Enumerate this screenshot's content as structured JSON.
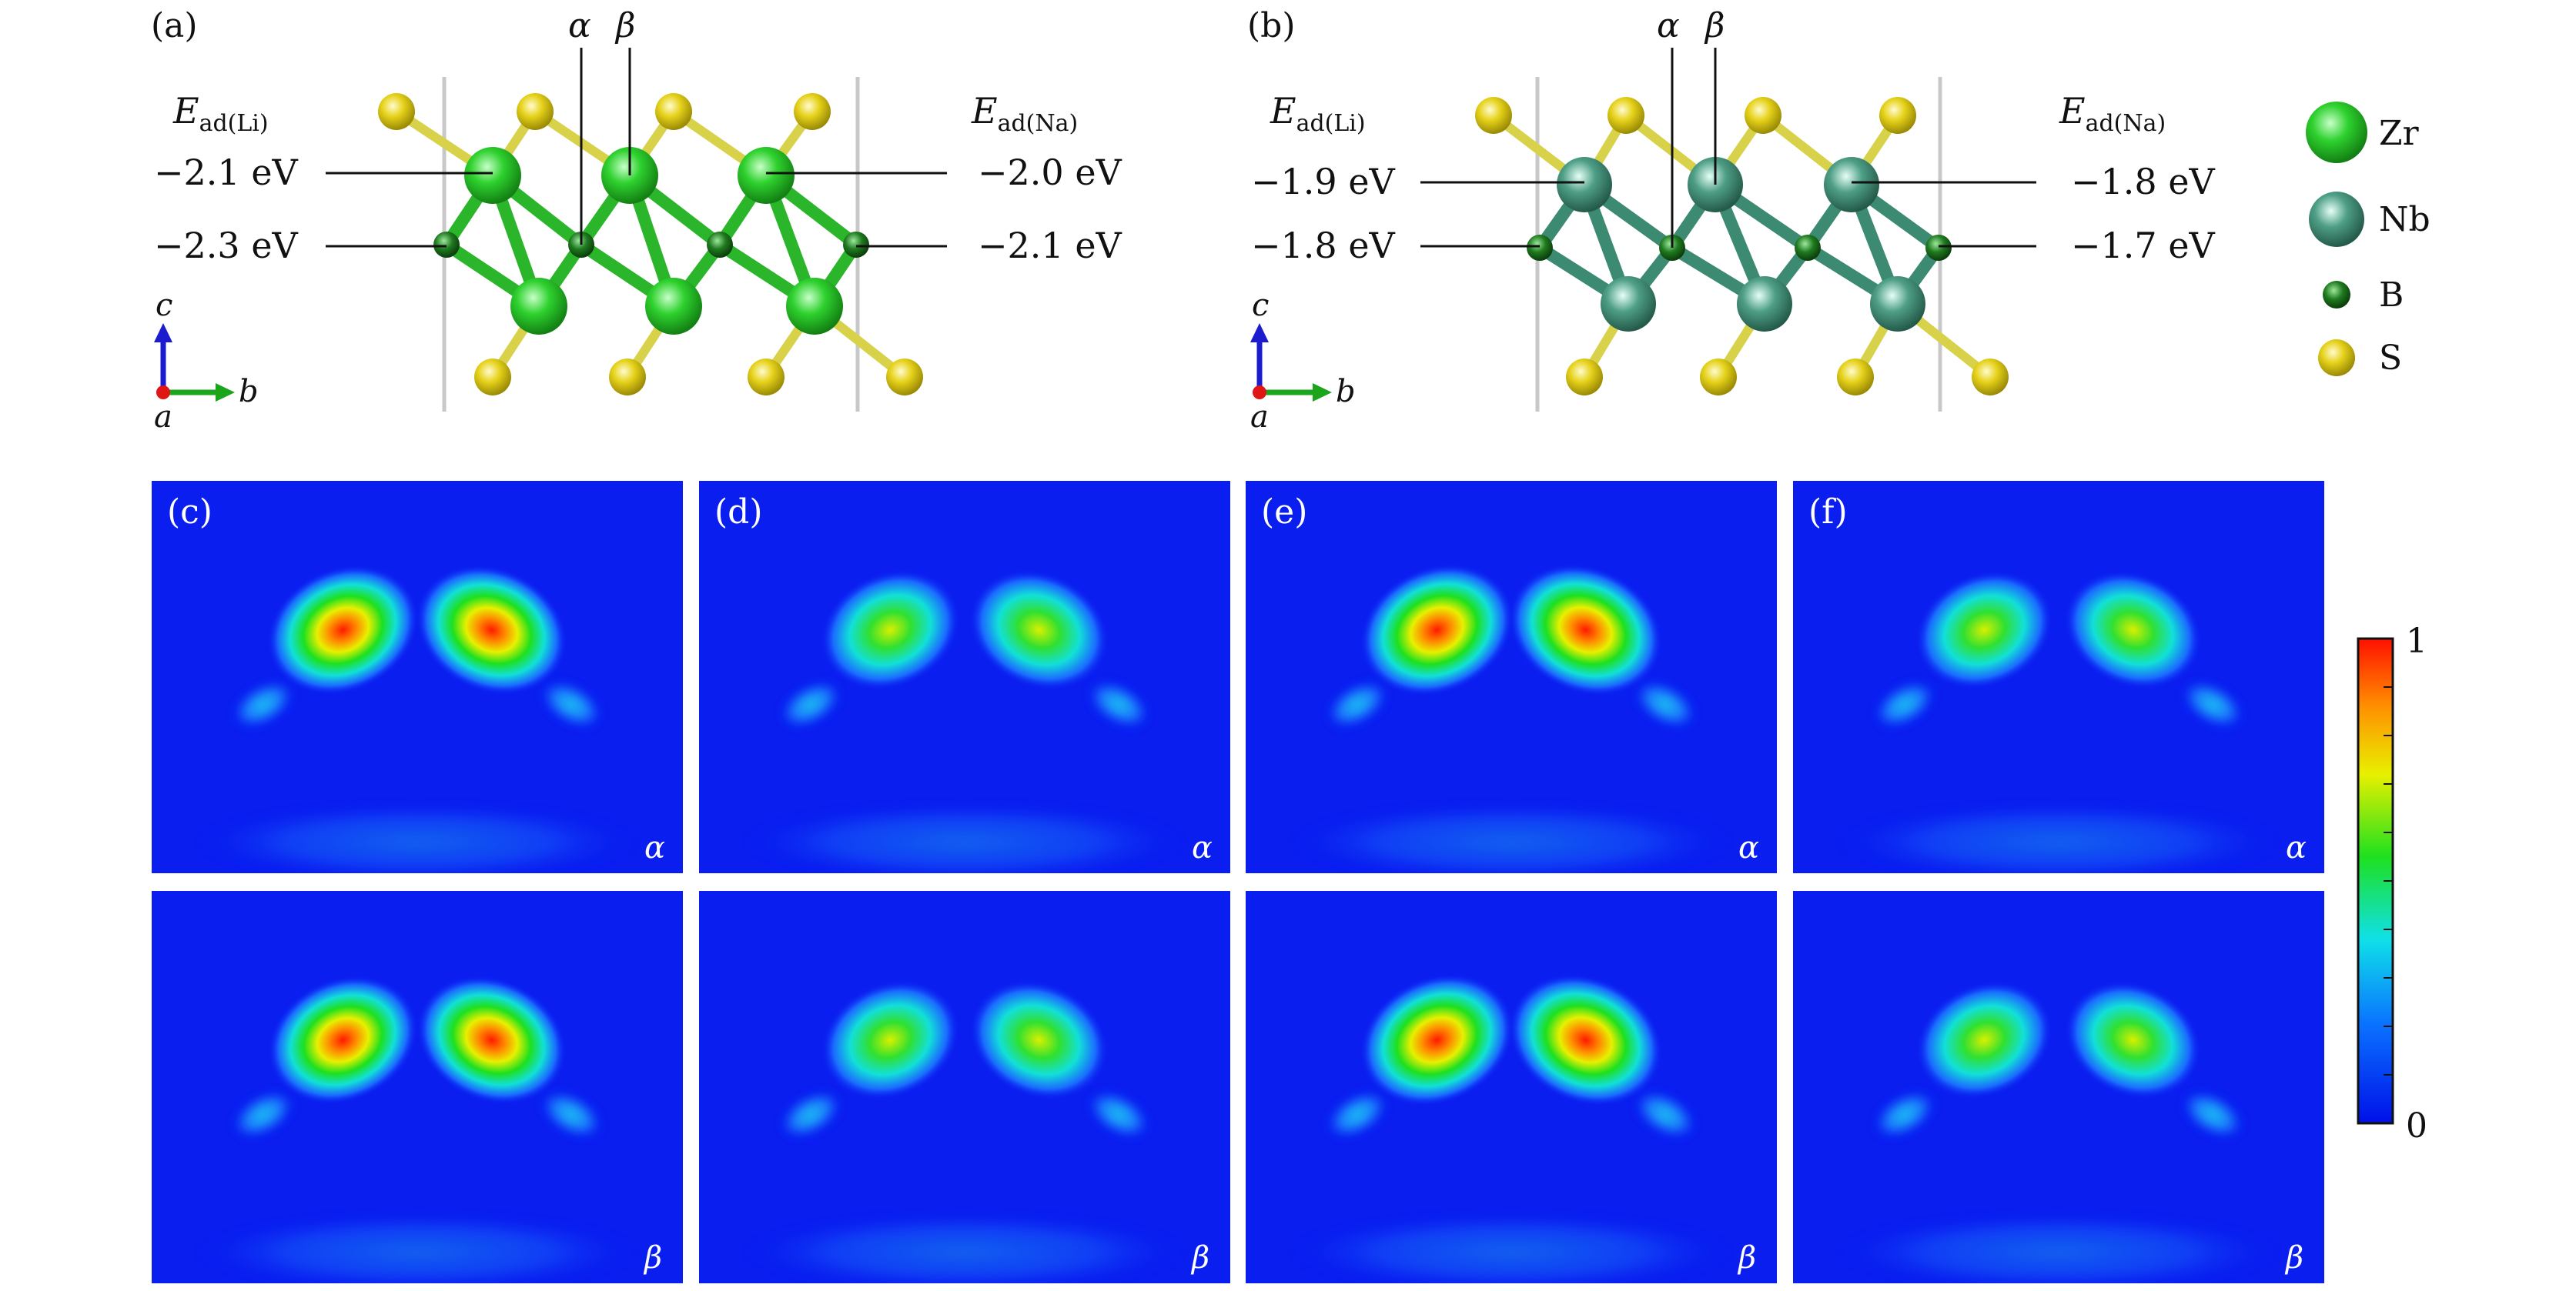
{
  "panel_a": {
    "label": "(a)",
    "sites": [
      "α",
      "β"
    ],
    "left_header": {
      "E": "E",
      "sub": "ad(Li)"
    },
    "right_header": {
      "E": "E",
      "sub": "ad(Na)"
    },
    "left_values": [
      "−2.1 eV",
      "−2.3 eV"
    ],
    "right_values": [
      "−2.0 eV",
      "−2.1 eV"
    ],
    "axes": {
      "c": "c",
      "b": "b",
      "a": "a"
    }
  },
  "panel_b": {
    "label": "(b)",
    "sites": [
      "α",
      "β"
    ],
    "left_header": {
      "E": "E",
      "sub": "ad(Li)"
    },
    "right_header": {
      "E": "E",
      "sub": "ad(Na)"
    },
    "left_values": [
      "−1.9 eV",
      "−1.8 eV"
    ],
    "right_values": [
      "−1.8 eV",
      "−1.7 eV"
    ],
    "axes": {
      "c": "c",
      "b": "b",
      "a": "a"
    }
  },
  "legend": {
    "items": [
      {
        "label": "Zr",
        "color": "#2ed12e"
      },
      {
        "label": "Nb",
        "color": "#4e9e86"
      },
      {
        "label": "B",
        "color": "#1f7a1f"
      },
      {
        "label": "S",
        "color": "#e6d21a"
      }
    ]
  },
  "maps": {
    "labels": [
      "(c)",
      "(d)",
      "(e)",
      "(f)"
    ],
    "row_labels": [
      "α",
      "β"
    ],
    "intensity": [
      [
        0.95,
        0.72,
        1.0,
        0.68
      ],
      [
        0.92,
        0.7,
        1.0,
        0.66
      ]
    ]
  },
  "colorbar": {
    "max_label": "1",
    "min_label": "0",
    "range": [
      0,
      1
    ]
  },
  "colors": {
    "zr": "#2ed12e",
    "nb": "#4e9e86",
    "b": "#1f7a1f",
    "s": "#e6d21a",
    "map_bg": "#0a1ef0"
  }
}
